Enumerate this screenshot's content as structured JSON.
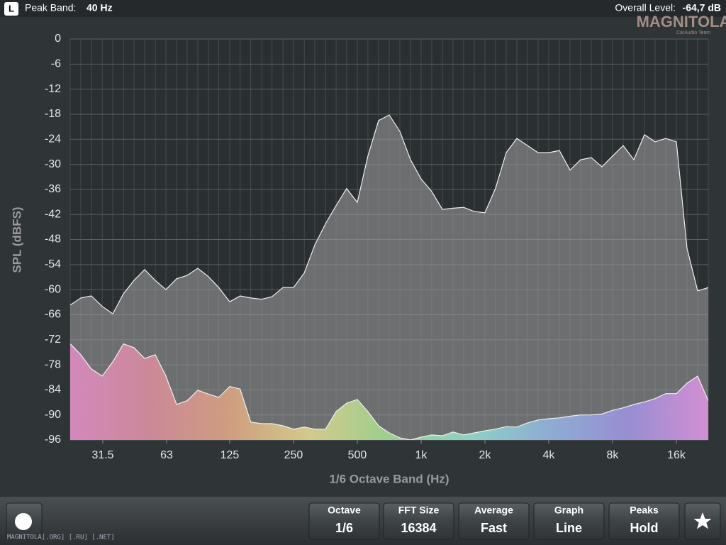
{
  "header": {
    "channel": "L",
    "peak_label": "Peak Band:",
    "peak_value": "40 Hz",
    "level_label": "Overall Level:",
    "level_value": "-64,7 dB",
    "logo": "MAGNITOLA",
    "logo_sub": "CarAudio Team"
  },
  "chart_data": {
    "type": "area",
    "xlabel": "1/6 Octave Band (Hz)",
    "ylabel": "SPL (dBFS)",
    "log_x": true,
    "grid": true,
    "x": [
      22.1,
      24.8,
      27.8,
      31.3,
      35.1,
      39.4,
      44.2,
      49.6,
      55.7,
      62.5,
      70.2,
      78.7,
      88.4,
      99.2,
      111,
      125,
      140,
      157,
      177,
      198,
      223,
      250,
      281,
      315,
      354,
      397,
      445,
      500,
      561,
      630,
      707,
      794,
      891,
      1000,
      1122,
      1260,
      1414,
      1587,
      1782,
      2000,
      2245,
      2520,
      2828,
      3175,
      3564,
      4000,
      4490,
      5040,
      5657,
      6350,
      7127,
      8000,
      8980,
      10079,
      11314,
      12699,
      14254,
      16000,
      17959,
      20159,
      22627
    ],
    "xlim": [
      22.1,
      22627
    ],
    "xticks": [
      31.5,
      63,
      125,
      250,
      500,
      {
        "value": 1000,
        "label": "1k"
      },
      {
        "value": 2000,
        "label": "2k"
      },
      {
        "value": 4000,
        "label": "4k"
      },
      {
        "value": 8000,
        "label": "8k"
      },
      {
        "value": 16000,
        "label": "16k"
      }
    ],
    "ylim": [
      -96,
      0
    ],
    "yticks": [
      0,
      -6,
      -12,
      -18,
      -24,
      -30,
      -36,
      -42,
      -48,
      -54,
      -60,
      -66,
      -72,
      -78,
      -84,
      -90,
      -96
    ],
    "series": [
      {
        "color": "#9a9a9a",
        "values": [
          -63.7,
          -62,
          -61.5,
          -64,
          -65.8,
          -61,
          -57.8,
          -55.2,
          -57.8,
          -60,
          -57.4,
          -56.6,
          -54.9,
          -56.9,
          -59.5,
          -62.9,
          -61.5,
          -62,
          -62.3,
          -61.7,
          -59.5,
          -59.5,
          -56,
          -49.3,
          -44.2,
          -39.9,
          -35.8,
          -39.1,
          -28,
          -19.5,
          -18.2,
          -22.1,
          -28.9,
          -33.5,
          -36.5,
          -40.8,
          -40.5,
          -40.3,
          -41.3,
          -41.6,
          -35.7,
          -27.2,
          -23.8,
          -25.5,
          -27.2,
          -27.2,
          -26.7,
          -31.4,
          -28.9,
          -28.4,
          -30.6,
          -28,
          -25.5,
          -28.9,
          -22.9,
          -24.6,
          -23.8,
          -24.6,
          -50.1,
          -60.3,
          -59.5
        ]
      },
      {
        "color": "#d890d8",
        "gradient": [
          "#d98ac0",
          "#d08a9a",
          "#d4a080",
          "#d8cf8c",
          "#9fd490",
          "#8fd6c8",
          "#8fb0d8",
          "#9a8fd8",
          "#d890d8"
        ],
        "values": [
          -73,
          -75.6,
          -79,
          -80.7,
          -77.3,
          -73,
          -73.9,
          -76.5,
          -75.6,
          -80.7,
          -87.5,
          -86.6,
          -84.1,
          -85,
          -85.8,
          -83.2,
          -83.8,
          -91.7,
          -92.1,
          -92.1,
          -92.6,
          -93.4,
          -92.9,
          -93.4,
          -93.4,
          -89.2,
          -87.2,
          -86.3,
          -89.2,
          -92.6,
          -94.3,
          -95.5,
          -96,
          -95.3,
          -94.8,
          -95,
          -94.1,
          -94.8,
          -94.3,
          -93.8,
          -93.4,
          -92.8,
          -92.9,
          -91.9,
          -91.2,
          -90.9,
          -90.7,
          -90.3,
          -90,
          -90,
          -89.8,
          -88.9,
          -88.3,
          -87.5,
          -86.9,
          -86.1,
          -84.9,
          -84.9,
          -82.4,
          -80.7,
          -86.6
        ]
      }
    ]
  },
  "controls": [
    {
      "label": "Octave",
      "value": "1/6"
    },
    {
      "label": "FFT Size",
      "value": "16384"
    },
    {
      "label": "Average",
      "value": "Fast"
    },
    {
      "label": "Graph",
      "value": "Line"
    },
    {
      "label": "Peaks",
      "value": "Hold"
    }
  ],
  "footer": "MAGNITOLA[.ORG] [.RU] [.NET]"
}
